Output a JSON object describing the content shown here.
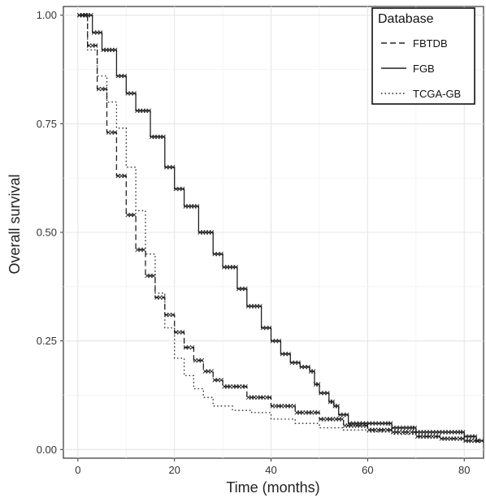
{
  "chart_data": {
    "type": "line",
    "title": "",
    "xlabel": "Time (months)",
    "ylabel": "Overall survival",
    "xlim": [
      -3,
      84
    ],
    "ylim": [
      -0.02,
      1.02
    ],
    "x_ticks": [
      0,
      20,
      40,
      60,
      80
    ],
    "y_ticks": [
      0,
      0.25,
      0.5,
      0.75,
      1
    ],
    "x_tick_labels": [
      "0",
      "20",
      "40",
      "60",
      "80"
    ],
    "y_tick_labels": [
      "0.00",
      "0.25",
      "0.50",
      "0.75",
      "1.00"
    ],
    "grid": true,
    "legend": {
      "title": "Database",
      "position": "top-right"
    },
    "series": [
      {
        "name": "FBTDB",
        "line_style": "dashed",
        "censor_marks": true,
        "points": [
          [
            0,
            1.0
          ],
          [
            2,
            0.93
          ],
          [
            4,
            0.83
          ],
          [
            6,
            0.73
          ],
          [
            8,
            0.63
          ],
          [
            10,
            0.54
          ],
          [
            12,
            0.46
          ],
          [
            14,
            0.4
          ],
          [
            16,
            0.35
          ],
          [
            18,
            0.31
          ],
          [
            20,
            0.27
          ],
          [
            22,
            0.235
          ],
          [
            24,
            0.205
          ],
          [
            26,
            0.18
          ],
          [
            28,
            0.16
          ],
          [
            30,
            0.145
          ],
          [
            35,
            0.12
          ],
          [
            40,
            0.1
          ],
          [
            45,
            0.085
          ],
          [
            50,
            0.07
          ],
          [
            55,
            0.055
          ],
          [
            60,
            0.045
          ],
          [
            65,
            0.04
          ],
          [
            70,
            0.03
          ],
          [
            75,
            0.025
          ],
          [
            80,
            0.02
          ],
          [
            83,
            0.02
          ]
        ]
      },
      {
        "name": "FGB",
        "line_style": "solid",
        "censor_marks": true,
        "points": [
          [
            0,
            1.0
          ],
          [
            3,
            0.96
          ],
          [
            5,
            0.92
          ],
          [
            8,
            0.86
          ],
          [
            10,
            0.82
          ],
          [
            12,
            0.78
          ],
          [
            15,
            0.72
          ],
          [
            18,
            0.65
          ],
          [
            20,
            0.6
          ],
          [
            22,
            0.56
          ],
          [
            25,
            0.5
          ],
          [
            28,
            0.45
          ],
          [
            30,
            0.42
          ],
          [
            33,
            0.37
          ],
          [
            35,
            0.33
          ],
          [
            38,
            0.28
          ],
          [
            40,
            0.25
          ],
          [
            42,
            0.22
          ],
          [
            44,
            0.2
          ],
          [
            46,
            0.19
          ],
          [
            48,
            0.18
          ],
          [
            49,
            0.15
          ],
          [
            50,
            0.13
          ],
          [
            52,
            0.11
          ],
          [
            53,
            0.1
          ],
          [
            54,
            0.08
          ],
          [
            56,
            0.06
          ],
          [
            60,
            0.06
          ],
          [
            64,
            0.06
          ],
          [
            65,
            0.05
          ],
          [
            69,
            0.05
          ],
          [
            70,
            0.04
          ],
          [
            79,
            0.04
          ],
          [
            80,
            0.03
          ],
          [
            82,
            0.03
          ],
          [
            82.5,
            0.02
          ],
          [
            84,
            0.02
          ]
        ]
      },
      {
        "name": "TCGA-GB",
        "line_style": "dotted",
        "censor_marks": false,
        "points": [
          [
            0,
            1.0
          ],
          [
            2,
            0.92
          ],
          [
            4,
            0.86
          ],
          [
            6,
            0.8
          ],
          [
            8,
            0.74
          ],
          [
            10,
            0.65
          ],
          [
            12,
            0.55
          ],
          [
            14,
            0.45
          ],
          [
            16,
            0.36
          ],
          [
            18,
            0.28
          ],
          [
            20,
            0.21
          ],
          [
            22,
            0.17
          ],
          [
            24,
            0.14
          ],
          [
            26,
            0.12
          ],
          [
            28,
            0.1
          ],
          [
            32,
            0.09
          ],
          [
            36,
            0.085
          ],
          [
            40,
            0.07
          ],
          [
            45,
            0.06
          ],
          [
            50,
            0.05
          ],
          [
            55,
            0.045
          ],
          [
            60,
            0.04
          ],
          [
            65,
            0.035
          ],
          [
            70,
            0.03
          ],
          [
            75,
            0.025
          ],
          [
            80,
            0.015
          ]
        ]
      }
    ]
  }
}
